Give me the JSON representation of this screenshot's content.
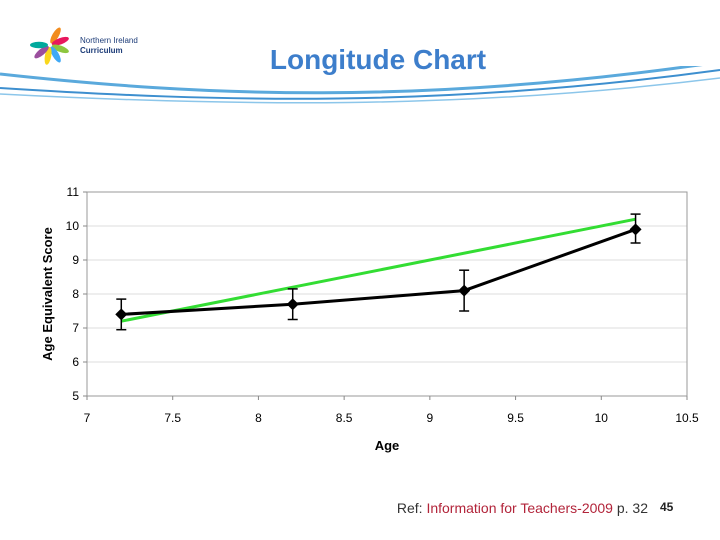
{
  "logo": {
    "line1": "Northern Ireland",
    "line2": "Curriculum",
    "petal_colors": [
      "#f28c1e",
      "#e8175d",
      "#8dc63f",
      "#3fa9f5",
      "#f9d71c",
      "#9b4f9e",
      "#00a99d"
    ]
  },
  "title": "Longitude Chart",
  "chart_data": {
    "type": "line",
    "xlabel": "Age",
    "ylabel": "Age Equivalent Score",
    "xlim": [
      7,
      10.5
    ],
    "ylim": [
      5,
      11
    ],
    "xticks": [
      7,
      7.5,
      8,
      8.5,
      9,
      9.5,
      10,
      10.5
    ],
    "yticks": [
      5,
      6,
      7,
      8,
      9,
      10,
      11
    ],
    "grid": "horizontal",
    "series": [
      {
        "color": "#000000",
        "marker": "diamond",
        "points": [
          {
            "x": 7.2,
            "y": 7.4,
            "err_low": 6.95,
            "err_high": 7.85
          },
          {
            "x": 8.2,
            "y": 7.7,
            "err_low": 7.25,
            "err_high": 8.15
          },
          {
            "x": 9.2,
            "y": 8.1,
            "err_low": 7.5,
            "err_high": 8.7
          },
          {
            "x": 10.2,
            "y": 9.9,
            "err_low": 9.5,
            "err_high": 10.35
          }
        ]
      },
      {
        "color": "#33dd33",
        "marker": "none",
        "points": [
          {
            "x": 7.2,
            "y": 7.2
          },
          {
            "x": 10.2,
            "y": 10.2
          }
        ]
      }
    ]
  },
  "footer": {
    "ref_prefix": "Ref: ",
    "ref_source": "Information for Teachers-2009",
    "ref_suffix": " p. 32",
    "page_number": "45"
  }
}
